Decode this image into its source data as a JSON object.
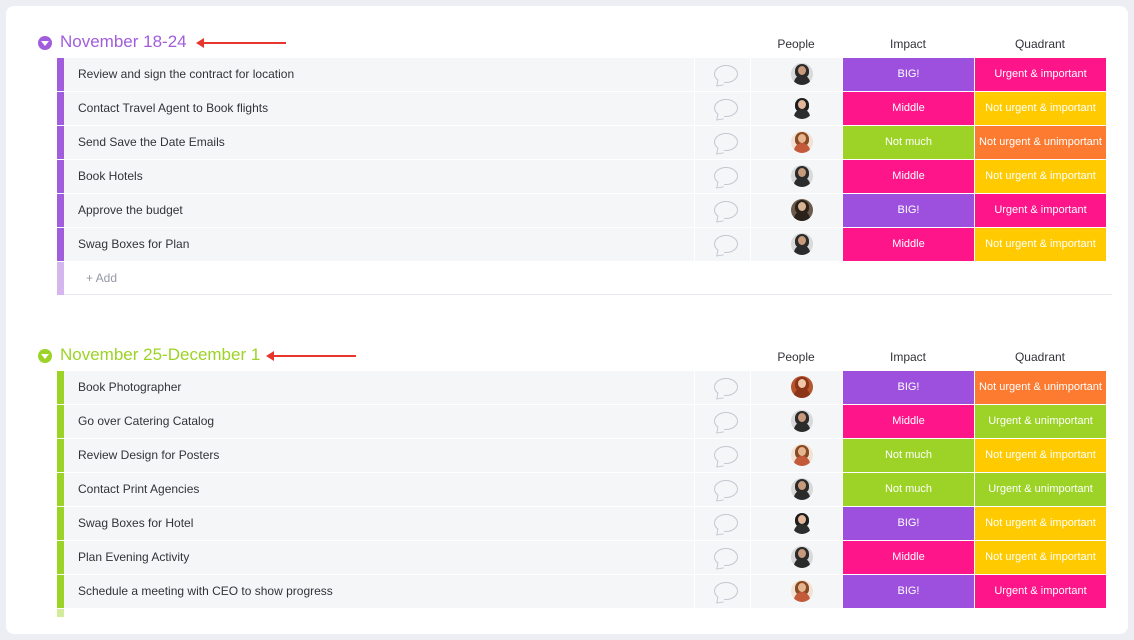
{
  "columns": {
    "people": "People",
    "impact": "Impact",
    "quadrant": "Quadrant"
  },
  "colors": {
    "purple": "#a25ddc",
    "green": "#9cd326",
    "pink": "#ff158a",
    "lime": "#9cd326",
    "violet": "#9d50dd",
    "yellow": "#ffcb00",
    "orange": "#fd7b30",
    "red_pink": "#ff1e7a"
  },
  "groups": [
    {
      "title": "November 18-24",
      "color": "#a25ddc",
      "add_label": "+ Add",
      "rows": [
        {
          "name": "Review and sign the contract for location",
          "avatar": "person-dark-hair",
          "impact": "BIG!",
          "impact_color": "#9d50dd",
          "quadrant": "Urgent & important",
          "quadrant_color": "#ff158a"
        },
        {
          "name": "Contact Travel Agent to Book flights",
          "avatar": "person-man",
          "impact": "Middle",
          "impact_color": "#ff158a",
          "quadrant": "Not urgent & important",
          "quadrant_color": "#ffcb00"
        },
        {
          "name": "Send Save the Date Emails",
          "avatar": "person-curly",
          "impact": "Not much",
          "impact_color": "#9cd326",
          "quadrant": "Not urgent & unimportant",
          "quadrant_color": "#fd7b30"
        },
        {
          "name": "Book Hotels",
          "avatar": "person-dark-hair",
          "impact": "Middle",
          "impact_color": "#ff158a",
          "quadrant": "Not urgent & important",
          "quadrant_color": "#ffcb00"
        },
        {
          "name": "Approve the budget",
          "avatar": "person-beard",
          "impact": "BIG!",
          "impact_color": "#9d50dd",
          "quadrant": "Urgent & important",
          "quadrant_color": "#ff158a"
        },
        {
          "name": "Swag Boxes for Plan",
          "avatar": "person-dark-hair",
          "impact": "Middle",
          "impact_color": "#ff158a",
          "quadrant": "Not urgent & important",
          "quadrant_color": "#ffcb00"
        }
      ]
    },
    {
      "title": "November 25-December 1",
      "color": "#9cd326",
      "rows": [
        {
          "name": "Book Photographer",
          "avatar": "person-red-hair",
          "impact": "BIG!",
          "impact_color": "#9d50dd",
          "quadrant": "Not urgent & unimportant",
          "quadrant_color": "#fd7b30"
        },
        {
          "name": "Go over Catering Catalog",
          "avatar": "person-dark-hair",
          "impact": "Middle",
          "impact_color": "#ff158a",
          "quadrant": "Urgent & unimportant",
          "quadrant_color": "#9cd326"
        },
        {
          "name": "Review Design for Posters",
          "avatar": "person-curly",
          "impact": "Not much",
          "impact_color": "#9cd326",
          "quadrant": "Not urgent & important",
          "quadrant_color": "#ffcb00"
        },
        {
          "name": "Contact Print Agencies",
          "avatar": "person-dark-hair",
          "impact": "Not much",
          "impact_color": "#9cd326",
          "quadrant": "Urgent & unimportant",
          "quadrant_color": "#9cd326"
        },
        {
          "name": "Swag Boxes for Hotel",
          "avatar": "person-man",
          "impact": "BIG!",
          "impact_color": "#9d50dd",
          "quadrant": "Not urgent & important",
          "quadrant_color": "#ffcb00"
        },
        {
          "name": "Plan Evening Activity",
          "avatar": "person-dark-hair",
          "impact": "Middle",
          "impact_color": "#ff158a",
          "quadrant": "Not urgent & important",
          "quadrant_color": "#ffcb00"
        },
        {
          "name": "Schedule a meeting with CEO to show progress",
          "avatar": "person-curly",
          "impact": "BIG!",
          "impact_color": "#9d50dd",
          "quadrant": "Urgent & important",
          "quadrant_color": "#ff158a"
        }
      ]
    }
  ]
}
